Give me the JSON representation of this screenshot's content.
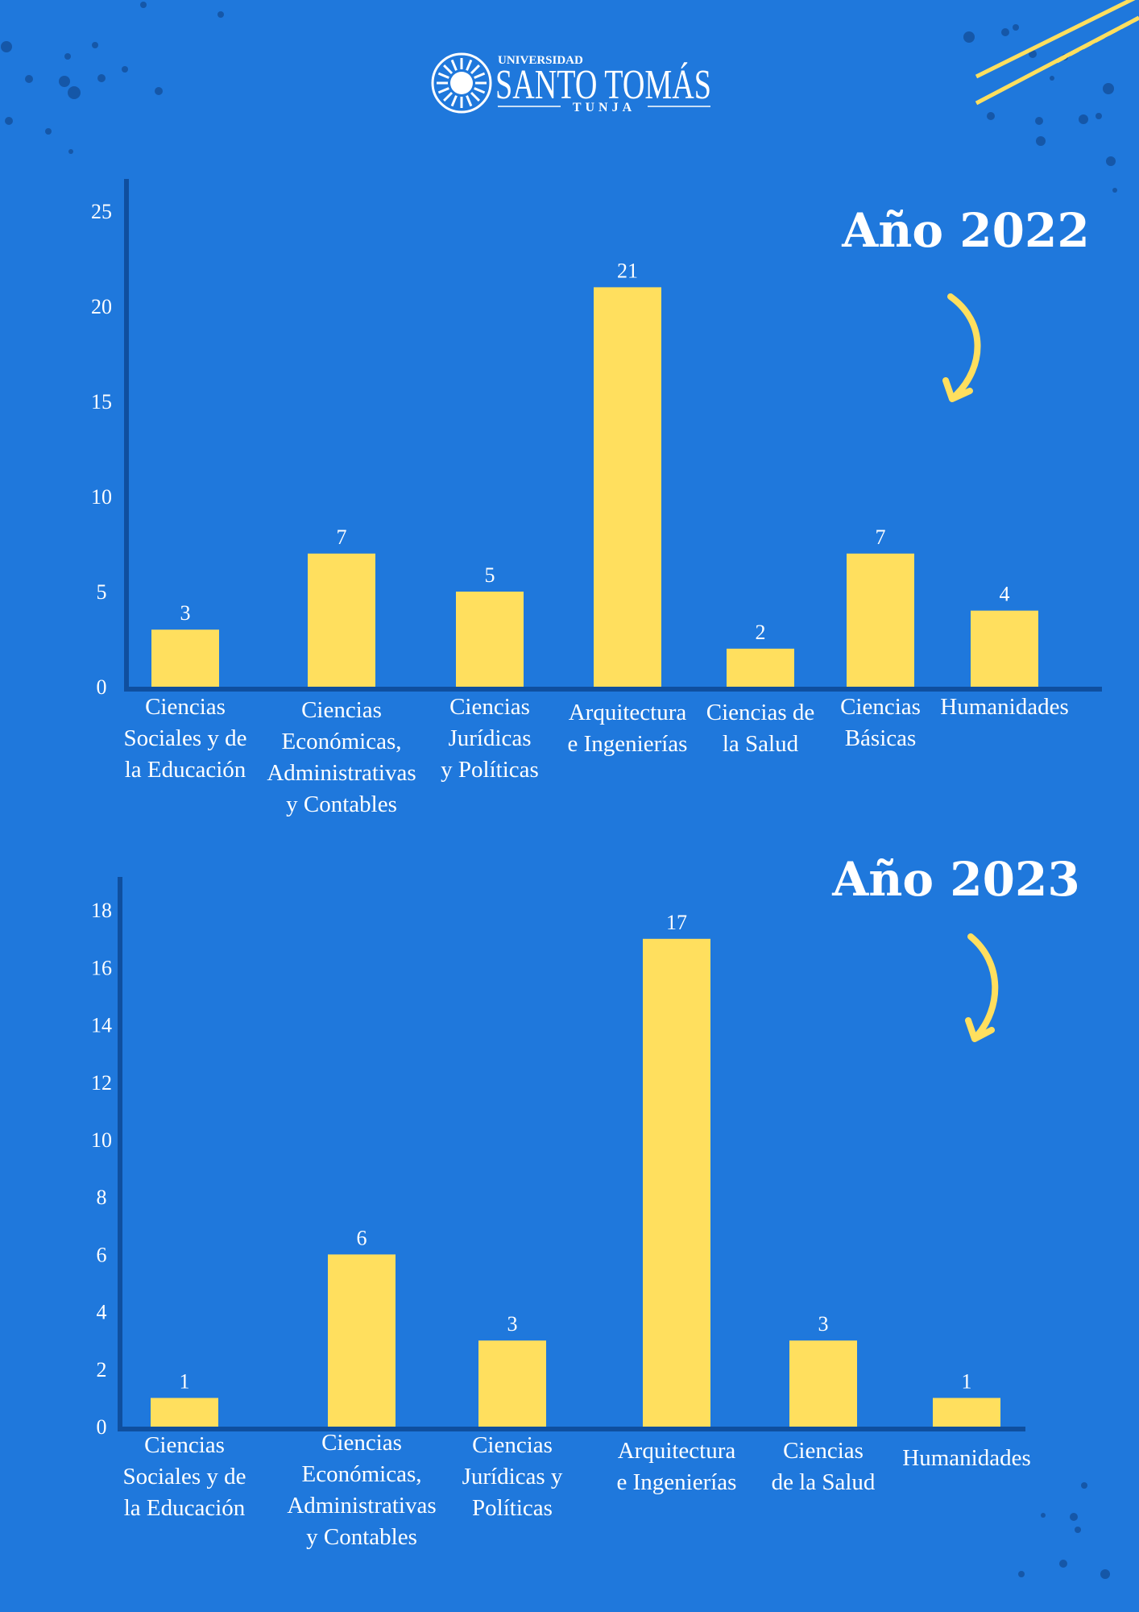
{
  "colors": {
    "background": "#1f78dc",
    "bar": "#ffdf5e",
    "axis": "#0f4f9f",
    "text": "#ffffff",
    "dots": "#1557a8",
    "arrow": "#ffdf5e"
  },
  "logo": {
    "university": "UNIVERSIDAD",
    "name": "SANTO TOMÁS",
    "campus": "TUNJA"
  },
  "chart_data": [
    {
      "type": "bar",
      "title": "Año 2022",
      "categories": [
        [
          "Ciencias",
          "Sociales y de",
          "la Educación"
        ],
        [
          "Ciencias",
          "Económicas,",
          "Administrativas",
          "y Contables"
        ],
        [
          "Ciencias",
          "Jurídicas",
          "y Políticas"
        ],
        [
          "Arquitectura",
          "e Ingenierías"
        ],
        [
          "Ciencias de",
          "la Salud"
        ],
        [
          "Ciencias",
          "Básicas"
        ],
        [
          "Humanidades"
        ]
      ],
      "values": [
        3,
        7,
        5,
        21,
        2,
        7,
        4
      ],
      "yticks": [
        0,
        5,
        10,
        15,
        20,
        25
      ],
      "ylim": [
        0,
        25
      ],
      "xlabel": "",
      "ylabel": "",
      "grid": false,
      "data_labels": true
    },
    {
      "type": "bar",
      "title": "Año 2023",
      "categories": [
        [
          "Ciencias",
          "Sociales y de",
          "la Educación"
        ],
        [
          "Ciencias",
          "Económicas,",
          "Administrativas",
          "y Contables"
        ],
        [
          "Ciencias",
          "Jurídicas y",
          "Políticas"
        ],
        [
          "Arquitectura",
          "e Ingenierías"
        ],
        [
          "Ciencias",
          "de la Salud"
        ],
        [
          "Humanidades"
        ]
      ],
      "values": [
        1,
        6,
        3,
        17,
        3,
        1
      ],
      "yticks": [
        0,
        2,
        4,
        6,
        8,
        10,
        12,
        14,
        16,
        18
      ],
      "ylim": [
        0,
        18
      ],
      "xlabel": "",
      "ylabel": "",
      "grid": false,
      "data_labels": true
    }
  ]
}
